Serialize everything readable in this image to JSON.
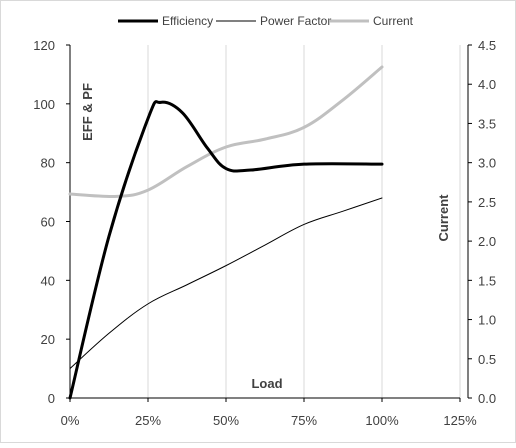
{
  "chart_data": {
    "type": "line",
    "x": [
      0,
      0.25,
      0.5,
      0.75,
      1.0
    ],
    "x_tick_labels": [
      "0%",
      "25%",
      "50%",
      "75%",
      "100%",
      "125%"
    ],
    "x_ticks": [
      0,
      0.25,
      0.5,
      0.75,
      1.0,
      1.25
    ],
    "xlim": [
      0,
      1.25
    ],
    "xlabel": "Load",
    "ylabel": "EFF & PF",
    "ylim": [
      0,
      120
    ],
    "y_ticks": [
      0,
      20,
      40,
      60,
      80,
      100,
      120
    ],
    "y2label": "Current",
    "y2lim": [
      0,
      4.5
    ],
    "y2_tick_labels": [
      "0.0",
      "0.5",
      "1.0",
      "1.5",
      "2.0",
      "2.5",
      "3.0",
      "3.5",
      "4.0",
      "4.5"
    ],
    "y2_ticks": [
      0,
      0.5,
      1.0,
      1.5,
      2.0,
      2.5,
      3.0,
      3.5,
      4.0,
      4.5
    ],
    "grid": "vertical",
    "legend_position": "top",
    "series": [
      {
        "name": "Efficiency",
        "axis": "left",
        "color": "#000000",
        "width": 3,
        "x": [
          0,
          0.125,
          0.25,
          0.29,
          0.36,
          0.44,
          0.5,
          0.58,
          0.75,
          1.0
        ],
        "values": [
          0,
          55,
          95,
          100.5,
          97,
          85,
          78,
          77.5,
          79.5,
          79.5
        ]
      },
      {
        "name": "Power Factor",
        "axis": "left",
        "color": "#000000",
        "width": 1,
        "x": [
          0,
          0.125,
          0.25,
          0.375,
          0.5,
          0.625,
          0.75,
          0.875,
          1.0
        ],
        "values": [
          10,
          22,
          32,
          38.5,
          45,
          52,
          59,
          63.5,
          68
        ]
      },
      {
        "name": "Current",
        "axis": "right",
        "color": "#c0c0c0",
        "width": 3,
        "x": [
          0,
          0.15,
          0.25,
          0.375,
          0.5,
          0.625,
          0.75,
          0.875,
          1.0
        ],
        "values": [
          2.6,
          2.57,
          2.65,
          2.95,
          3.2,
          3.3,
          3.45,
          3.8,
          4.22
        ]
      }
    ]
  }
}
